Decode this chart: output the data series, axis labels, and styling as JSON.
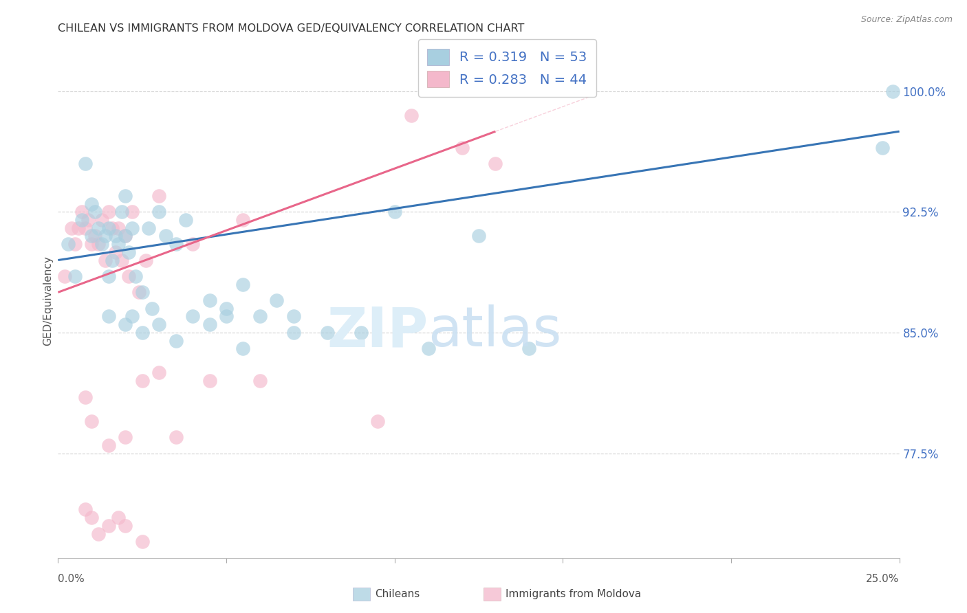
{
  "title": "CHILEAN VS IMMIGRANTS FROM MOLDOVA GED/EQUIVALENCY CORRELATION CHART",
  "source": "Source: ZipAtlas.com",
  "ylabel": "GED/Equivalency",
  "ytick_vals": [
    77.5,
    85.0,
    92.5,
    100.0
  ],
  "xlim": [
    0.0,
    25.0
  ],
  "ylim": [
    71.0,
    103.0
  ],
  "legend_label1": "R = 0.319   N = 53",
  "legend_label2": "R = 0.283   N = 44",
  "legend_bottom1": "Chileans",
  "legend_bottom2": "Immigrants from Moldova",
  "blue_color": "#a8cfe0",
  "pink_color": "#f4b8cb",
  "blue_line_color": "#3875b5",
  "pink_line_color": "#e8668a",
  "blue_line_x0": 0.0,
  "blue_line_y0": 89.5,
  "blue_line_x1": 25.0,
  "blue_line_y1": 97.5,
  "pink_line_x0": 0.0,
  "pink_line_y0": 87.5,
  "pink_line_x1": 13.0,
  "pink_line_y1": 97.5,
  "blue_scatter_x": [
    0.3,
    0.5,
    0.7,
    0.8,
    1.0,
    1.0,
    1.1,
    1.2,
    1.3,
    1.4,
    1.5,
    1.5,
    1.6,
    1.7,
    1.8,
    1.9,
    2.0,
    2.0,
    2.1,
    2.2,
    2.3,
    2.5,
    2.7,
    3.0,
    3.2,
    3.5,
    3.8,
    4.5,
    5.0,
    5.5,
    6.5,
    7.0,
    8.0,
    10.0,
    12.5,
    14.0,
    24.8
  ],
  "blue_scatter_y": [
    90.5,
    88.5,
    92.0,
    95.5,
    91.0,
    93.0,
    92.5,
    91.5,
    90.5,
    91.0,
    88.5,
    91.5,
    89.5,
    91.0,
    90.5,
    92.5,
    91.0,
    93.5,
    90.0,
    91.5,
    88.5,
    87.5,
    91.5,
    92.5,
    91.0,
    90.5,
    92.0,
    87.0,
    86.0,
    88.0,
    87.0,
    86.0,
    85.0,
    92.5,
    91.0,
    84.0,
    100.0
  ],
  "blue_scatter_x2": [
    1.5,
    2.0,
    2.2,
    2.5,
    2.8,
    3.0,
    3.5,
    4.0,
    4.5,
    5.0,
    5.5,
    6.0,
    7.0,
    9.0,
    11.0,
    24.5
  ],
  "blue_scatter_y2": [
    86.0,
    85.5,
    86.0,
    85.0,
    86.5,
    85.5,
    84.5,
    86.0,
    85.5,
    86.5,
    84.0,
    86.0,
    85.0,
    85.0,
    84.0,
    96.5
  ],
  "pink_scatter_x": [
    0.2,
    0.4,
    0.5,
    0.6,
    0.7,
    0.8,
    0.9,
    1.0,
    1.1,
    1.2,
    1.3,
    1.4,
    1.5,
    1.6,
    1.7,
    1.8,
    1.9,
    2.0,
    2.1,
    2.2,
    2.4,
    2.6,
    3.0,
    4.0,
    5.5,
    9.5,
    10.5,
    12.0,
    13.0
  ],
  "pink_scatter_x_low": [
    0.8,
    1.0,
    1.5,
    2.0,
    2.5,
    3.0,
    3.5,
    4.5,
    6.0
  ],
  "pink_scatter_y_low": [
    81.0,
    79.5,
    78.0,
    78.5,
    82.0,
    82.5,
    78.5,
    82.0,
    82.0
  ],
  "pink_scatter_x_vlow": [
    0.8,
    1.0,
    1.2,
    1.5,
    1.8,
    2.0,
    2.5
  ],
  "pink_scatter_y_vlow": [
    74.0,
    73.5,
    72.5,
    73.0,
    73.5,
    73.0,
    72.0
  ],
  "pink_scatter_y": [
    88.5,
    91.5,
    90.5,
    91.5,
    92.5,
    91.5,
    92.0,
    90.5,
    91.0,
    90.5,
    92.0,
    89.5,
    92.5,
    91.5,
    90.0,
    91.5,
    89.5,
    91.0,
    88.5,
    92.5,
    87.5,
    89.5,
    93.5,
    90.5,
    92.0,
    79.5,
    98.5,
    96.5,
    95.5
  ]
}
